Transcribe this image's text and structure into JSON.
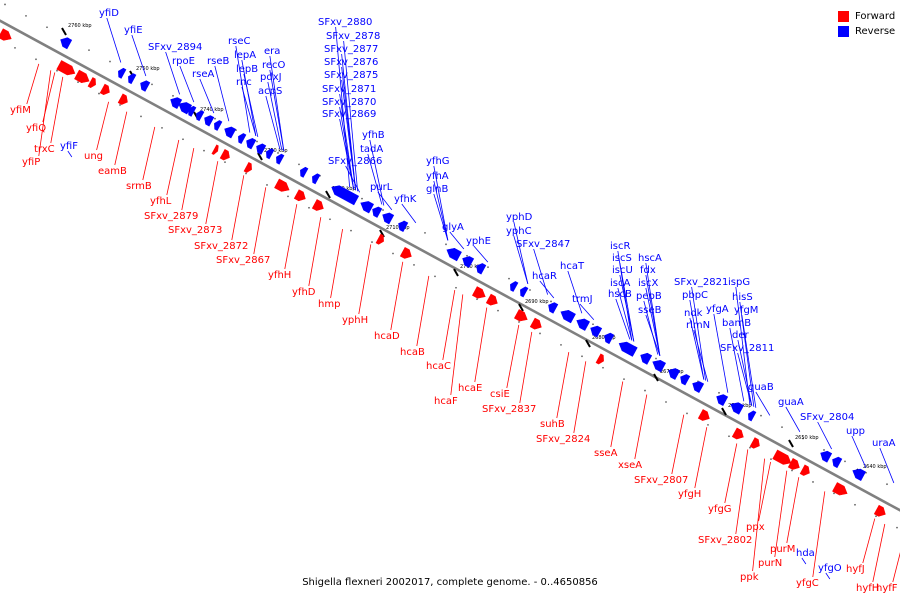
{
  "caption": "Shigella flexneri 2002017, complete genome. - 0..4650856",
  "legend": [
    {
      "label": "Forward",
      "color": "#ff0000"
    },
    {
      "label": "Reverse",
      "color": "#0000ff"
    }
  ],
  "colors": {
    "forward": "#ff0000",
    "reverse": "#0000ff",
    "backbone": "#808080"
  },
  "kbp_ticks": [
    "2760 kbp",
    "2750 kbp",
    "2740 kbp",
    "2730 kbp",
    "2720 kbp",
    "2710 kbp",
    "2700 kbp",
    "2690 kbp",
    "2680 kbp",
    "2670 kbp",
    "2660 kbp",
    "2650 kbp",
    "2640 kbp"
  ],
  "reverse_genes": [
    "yfiD",
    "yfiE",
    "SFxv_2894",
    "rpoE",
    "rseB",
    "rseA",
    "rseC",
    "lepA",
    "lepB",
    "rnc",
    "era",
    "recO",
    "pdxJ",
    "acpS",
    "SFxv_2880",
    "SFxv_2878",
    "SFxv_2877",
    "SFxv_2876",
    "SFxv_2875",
    "SFxv_2871",
    "SFxv_2870",
    "SFxv_2869",
    "yfhB",
    "tadA",
    "SFxv_2866",
    "purL",
    "yfhG",
    "yfhA",
    "yfhK",
    "glnB",
    "glyA",
    "yphD",
    "yphC",
    "yphE",
    "SFxv_2847",
    "hcaR",
    "hcaT",
    "iscR",
    "iscS",
    "iscU",
    "iscA",
    "hscB",
    "hscA",
    "fdx",
    "iscX",
    "pepB",
    "sseB",
    "trmJ",
    "SFxv_2821",
    "pbpC",
    "ndk",
    "rlmN",
    "ispG",
    "hisS",
    "yfgA",
    "yfgM",
    "bamB",
    "der",
    "SFxv_2811",
    "guaB",
    "guaA",
    "SFxv_2804",
    "upp",
    "uraA",
    "hda",
    "yfgO",
    "yfiF"
  ],
  "forward_genes": [
    "yfiM",
    "yfiQ",
    "trxC",
    "yfiP",
    "ung",
    "eamB",
    "srmB",
    "yfhL",
    "SFxv_2879",
    "SFxv_2873",
    "SFxv_2872",
    "SFxv_2867",
    "yfhH",
    "yfhD",
    "hmp",
    "yphH",
    "hcaD",
    "hcaB",
    "hcaC",
    "hcaE",
    "hcaF",
    "csiE",
    "SFxv_2837",
    "suhB",
    "SFxv_2824",
    "sseA",
    "xseA",
    "SFxv_2807",
    "yfgH",
    "yfgG",
    "SFxv_2802",
    "ppx",
    "purM",
    "purN",
    "ppk",
    "yfgC",
    "hyfJ",
    "hyfH",
    "hyfF"
  ]
}
